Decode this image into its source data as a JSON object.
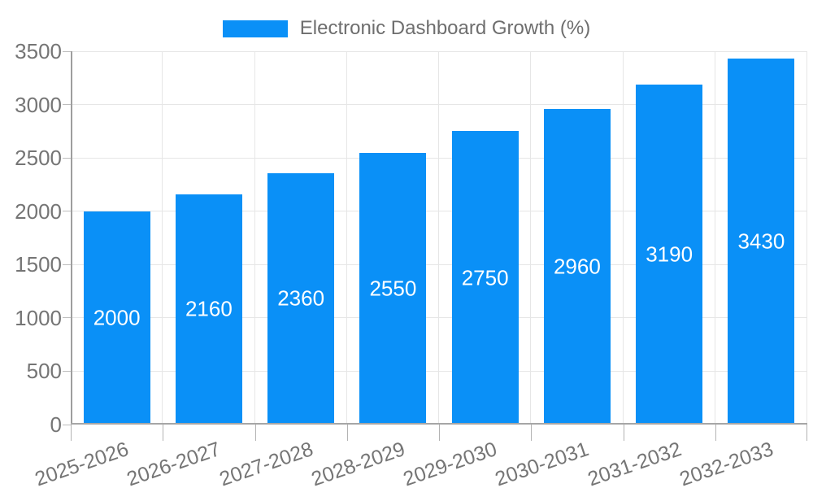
{
  "legend": {
    "label": "Electronic Dashboard Growth (%)"
  },
  "colors": {
    "bar": "#0a90f7",
    "bar_label": "#ffffff",
    "axis_label": "#757575",
    "gridline": "#e6e6e6",
    "axis_line": "#9e9e9e"
  },
  "chart_data": {
    "type": "bar",
    "title": "Electronic Dashboard Growth (%)",
    "categories": [
      "2025-2026",
      "2026-2027",
      "2027-2028",
      "2028-2029",
      "2029-2030",
      "2030-2031",
      "2031-2032",
      "2032-2033"
    ],
    "values": [
      2000,
      2160,
      2360,
      2550,
      2750,
      2960,
      3190,
      3430
    ],
    "bar_labels": [
      "2000",
      "2160",
      "2360",
      "2550",
      "2750",
      "2960",
      "3190",
      "3430"
    ],
    "xlabel": "",
    "ylabel": "",
    "ylim": [
      0,
      3500
    ],
    "yticks": [
      0,
      500,
      1000,
      1500,
      2000,
      2500,
      3000,
      3500
    ],
    "y_tick_labels": [
      "0",
      "500",
      "1000",
      "1500",
      "2000",
      "2500",
      "3000",
      "3500"
    ],
    "grid": true,
    "legend_position": "top-center",
    "x_label_rotation_deg": -19
  }
}
